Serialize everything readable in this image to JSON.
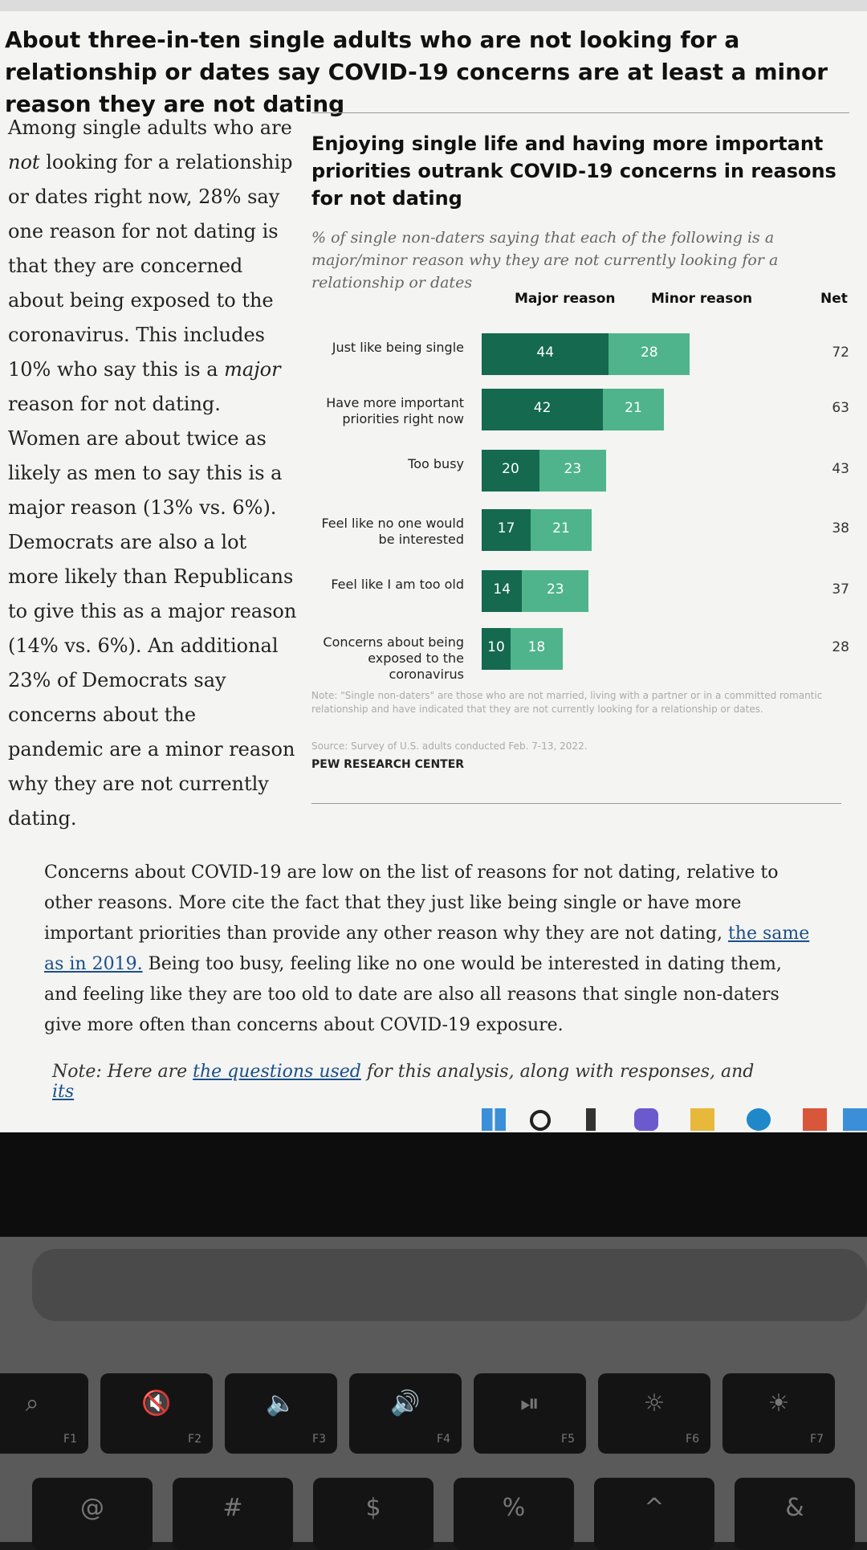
{
  "page": {
    "headline": "About three-in-ten single adults who are not looking for a relationship or dates say COVID-19 concerns are at least a minor reason they are not dating",
    "sidebar": {
      "p1": "Among single adults who are",
      "p2_em": "not",
      "p3": "looking for a relationship or dates right now, 28% say one reason for not dating is that they are concerned about being exposed to the coronavirus. This includes 10% who say this is a",
      "p4_em": "major",
      "p5": "reason for not dating. Women are about twice as likely as men to say this is a major reason (13% vs. 6%). Democrats are also a lot more likely than Republicans to give this as a major reason (14% vs. 6%). An additional 23% of Democrats say concerns about the pandemic are a minor reason why they are not currently dating."
    },
    "body": {
      "p1": "Concerns about COVID-19 are low on the list of reasons for not dating, relative to other reasons. More cite the fact that they just like being single or have more important priorities than provide any other reason why they are not dating,",
      "p1_link": "the same as in 2019.",
      "p2": "Being too busy, feeling like no one would be interested in dating them, and feeling like they are too old to date are also all reasons that single non-daters give more often than concerns about COVID-19 exposure.",
      "note_prefix": "Note: Here are",
      "note_link": "the questions used",
      "note_suffix": "for this analysis, along with responses, and",
      "note_link2": "its"
    }
  },
  "chart_data": {
    "type": "bar",
    "stacked": true,
    "orientation": "horizontal",
    "title": "Enjoying single life and having more important priorities outrank COVID-19 concerns in reasons for not dating",
    "subtitle": "% of single non-daters saying that each of the following is a major/minor reason why they are not currently looking for a relationship or dates",
    "categories": [
      "Just like being single",
      "Have more important priorities right now",
      "Too busy",
      "Feel like no one would be interested",
      "Feel like I am too old",
      "Concerns about being exposed to the coronavirus"
    ],
    "series": [
      {
        "name": "Major reason",
        "values": [
          44,
          42,
          20,
          17,
          14,
          10
        ],
        "color": "#14694f"
      },
      {
        "name": "Minor reason",
        "values": [
          28,
          21,
          23,
          21,
          23,
          18
        ],
        "color": "#4fb48c"
      }
    ],
    "net_label": "Net",
    "net": [
      72,
      63,
      43,
      38,
      37,
      28
    ],
    "note": "Note: \"Single non-daters\" are those who are not married, living with a partner or in a committed romantic relationship and have indicated that they are not currently looking for a relationship or dates.",
    "source": "Source: Survey of U.S. adults conducted Feb. 7-13, 2022.",
    "brand": "PEW RESEARCH CENTER"
  },
  "keyboard": {
    "fn_labels": [
      "F1",
      "F2",
      "F3",
      "F4",
      "F5",
      "F6",
      "F7"
    ],
    "number_glyphs": [
      "@",
      "#",
      "$",
      "%",
      "^",
      "&"
    ]
  }
}
